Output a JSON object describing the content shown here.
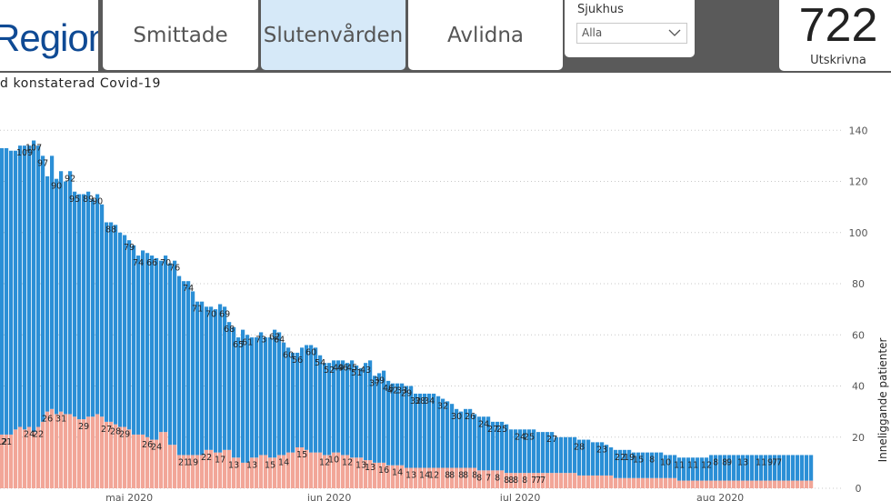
{
  "header": {
    "brand": "Region Gotland",
    "tabs": [
      {
        "label": "Smittade",
        "active": false
      },
      {
        "label": "Slutenvården",
        "active": true
      },
      {
        "label": "Avlidna",
        "active": false
      }
    ],
    "filter": {
      "label": "Sjukhus",
      "value": "Alla"
    },
    "kpi": {
      "value": "722",
      "label": "Utskrivna"
    }
  },
  "subtitle": "d konstaterad Covid-19",
  "colors": {
    "upper": "#2b8fd6",
    "lower": "#f2a698",
    "active_tab": "#d6e9f8"
  },
  "chart_data": {
    "type": "bar",
    "stacked": true,
    "ylabel": "Inneliggande patienter",
    "ylim": [
      0,
      140
    ],
    "yticks": [
      0,
      20,
      40,
      60,
      80,
      100,
      120,
      140
    ],
    "grid": true,
    "month_ticks": [
      {
        "label": "maj 2020",
        "index": 29
      },
      {
        "label": "jun 2020",
        "index": 73
      },
      {
        "label": "jul 2020",
        "index": 115
      },
      {
        "label": "aug 2020",
        "index": 159
      }
    ],
    "series": [
      {
        "values": [
          22,
          21,
          21,
          21,
          23,
          24,
          23,
          24,
          22,
          24,
          26,
          30,
          31,
          29,
          30,
          29,
          29,
          28,
          27,
          27,
          28,
          28,
          29,
          28,
          26,
          26,
          25,
          24,
          24,
          23,
          21,
          21,
          21,
          20,
          19,
          19,
          22,
          22,
          17,
          17,
          13,
          13,
          13,
          13,
          13,
          13,
          15,
          15,
          14,
          14,
          15,
          15,
          12,
          12,
          10,
          10,
          12,
          12,
          13,
          13,
          12,
          12,
          13,
          13,
          14,
          14,
          16,
          16,
          15,
          14,
          14,
          14,
          13,
          13,
          14,
          14,
          13,
          13,
          12,
          12,
          12,
          11,
          11,
          10,
          10,
          10,
          9,
          9,
          9,
          9,
          8,
          8,
          8,
          8,
          8,
          8,
          8,
          8,
          8,
          8,
          8,
          8,
          8,
          8,
          8,
          8,
          7,
          7,
          7,
          7,
          7,
          7,
          6,
          6,
          6,
          6,
          6,
          6,
          6,
          6,
          6,
          6,
          6,
          6,
          6,
          6,
          6,
          6,
          5,
          5,
          5,
          5,
          5,
          5,
          5,
          5,
          4,
          4,
          4,
          4,
          4,
          4,
          4,
          4,
          4,
          4,
          4,
          4,
          4,
          4,
          3,
          3,
          3,
          3,
          3,
          3,
          3,
          3,
          3,
          3,
          3,
          3,
          3,
          3,
          3,
          3,
          3,
          3,
          3,
          3,
          3,
          3,
          3,
          3,
          3,
          3,
          3,
          3,
          3,
          3
        ]
      },
      {
        "values": [
          112,
          112,
          112,
          111,
          109,
          110,
          111,
          110,
          114,
          110,
          104,
          92,
          99,
          92,
          94,
          91,
          95,
          88,
          88,
          88,
          88,
          85,
          86,
          83,
          78,
          78,
          78,
          76,
          75,
          74,
          74,
          70,
          72,
          72,
          72,
          71,
          67,
          69,
          71,
          72,
          70,
          68,
          68,
          64,
          60,
          60,
          56,
          56,
          56,
          58,
          56,
          50,
          51,
          47,
          52,
          50,
          47,
          47,
          48,
          46,
          47,
          50,
          48,
          44,
          41,
          39,
          37,
          39,
          41,
          42,
          41,
          38,
          36,
          36,
          36,
          36,
          37,
          36,
          38,
          36,
          35,
          38,
          39,
          34,
          35,
          36,
          33,
          32,
          32,
          32,
          32,
          32,
          29,
          29,
          29,
          29,
          29,
          28,
          27,
          26,
          25,
          23,
          22,
          23,
          23,
          21,
          21,
          21,
          21,
          19,
          19,
          19,
          19,
          17,
          17,
          17,
          17,
          17,
          17,
          16,
          16,
          16,
          16,
          14,
          14,
          14,
          14,
          14,
          14,
          14,
          14,
          13,
          13,
          13,
          12,
          11,
          11,
          11,
          11,
          11,
          10,
          10,
          10,
          10,
          10,
          10,
          10,
          9,
          9,
          9,
          9,
          9,
          9,
          9,
          9,
          9,
          9,
          10,
          10,
          10,
          10,
          10,
          10,
          10,
          10,
          10,
          10,
          10,
          10,
          10,
          10,
          10,
          10,
          10,
          10,
          10,
          10,
          10,
          10,
          10
        ]
      }
    ],
    "data_labels": [
      {
        "index": 1,
        "value": "12"
      },
      {
        "index": 2,
        "value": "21"
      },
      {
        "index": 6,
        "value": "109"
      },
      {
        "index": 7,
        "value": "24"
      },
      {
        "index": 8,
        "value": "107"
      },
      {
        "index": 9,
        "value": "22"
      },
      {
        "index": 10,
        "value": "97"
      },
      {
        "index": 11,
        "value": "26"
      },
      {
        "index": 13,
        "value": "90"
      },
      {
        "index": 14,
        "value": "31"
      },
      {
        "index": 16,
        "value": "92"
      },
      {
        "index": 17,
        "value": "95"
      },
      {
        "index": 19,
        "value": "29"
      },
      {
        "index": 20,
        "value": "89"
      },
      {
        "index": 22,
        "value": "90"
      },
      {
        "index": 24,
        "value": "27"
      },
      {
        "index": 25,
        "value": "88"
      },
      {
        "index": 26,
        "value": "28"
      },
      {
        "index": 28,
        "value": "29"
      },
      {
        "index": 29,
        "value": "79"
      },
      {
        "index": 31,
        "value": "74"
      },
      {
        "index": 33,
        "value": "26"
      },
      {
        "index": 34,
        "value": "66"
      },
      {
        "index": 35,
        "value": "24"
      },
      {
        "index": 37,
        "value": "70"
      },
      {
        "index": 39,
        "value": "76"
      },
      {
        "index": 41,
        "value": "21"
      },
      {
        "index": 42,
        "value": "74"
      },
      {
        "index": 43,
        "value": "19"
      },
      {
        "index": 44,
        "value": "71"
      },
      {
        "index": 46,
        "value": "22"
      },
      {
        "index": 47,
        "value": "70"
      },
      {
        "index": 49,
        "value": "17"
      },
      {
        "index": 50,
        "value": "69"
      },
      {
        "index": 51,
        "value": "68"
      },
      {
        "index": 52,
        "value": "13"
      },
      {
        "index": 53,
        "value": "65"
      },
      {
        "index": 55,
        "value": "61"
      },
      {
        "index": 56,
        "value": "13"
      },
      {
        "index": 58,
        "value": "73"
      },
      {
        "index": 60,
        "value": "15"
      },
      {
        "index": 61,
        "value": "62"
      },
      {
        "index": 62,
        "value": "64"
      },
      {
        "index": 63,
        "value": "14"
      },
      {
        "index": 64,
        "value": "60"
      },
      {
        "index": 66,
        "value": "56"
      },
      {
        "index": 67,
        "value": "15"
      },
      {
        "index": 69,
        "value": "60"
      },
      {
        "index": 71,
        "value": "54"
      },
      {
        "index": 72,
        "value": "12"
      },
      {
        "index": 73,
        "value": "52"
      },
      {
        "index": 74,
        "value": "10"
      },
      {
        "index": 75,
        "value": "49"
      },
      {
        "index": 76,
        "value": "46"
      },
      {
        "index": 77,
        "value": "12"
      },
      {
        "index": 78,
        "value": "45"
      },
      {
        "index": 79,
        "value": "51"
      },
      {
        "index": 80,
        "value": "13"
      },
      {
        "index": 81,
        "value": "43"
      },
      {
        "index": 82,
        "value": "13"
      },
      {
        "index": 83,
        "value": "37"
      },
      {
        "index": 84,
        "value": "39"
      },
      {
        "index": 85,
        "value": "16"
      },
      {
        "index": 86,
        "value": "46"
      },
      {
        "index": 87,
        "value": "42"
      },
      {
        "index": 88,
        "value": "14"
      },
      {
        "index": 89,
        "value": "33"
      },
      {
        "index": 90,
        "value": "29"
      },
      {
        "index": 91,
        "value": "13"
      },
      {
        "index": 92,
        "value": "32"
      },
      {
        "index": 93,
        "value": "38"
      },
      {
        "index": 94,
        "value": "14"
      },
      {
        "index": 95,
        "value": "34"
      },
      {
        "index": 96,
        "value": "12"
      },
      {
        "index": 98,
        "value": "32"
      },
      {
        "index": 99,
        "value": "8"
      },
      {
        "index": 100,
        "value": "8"
      },
      {
        "index": 101,
        "value": "30"
      },
      {
        "index": 102,
        "value": "8"
      },
      {
        "index": 103,
        "value": "8"
      },
      {
        "index": 104,
        "value": "26"
      },
      {
        "index": 105,
        "value": "8"
      },
      {
        "index": 106,
        "value": "8"
      },
      {
        "index": 107,
        "value": "24"
      },
      {
        "index": 108,
        "value": "7"
      },
      {
        "index": 109,
        "value": "27"
      },
      {
        "index": 110,
        "value": "8"
      },
      {
        "index": 111,
        "value": "25"
      },
      {
        "index": 112,
        "value": "8"
      },
      {
        "index": 113,
        "value": "8"
      },
      {
        "index": 114,
        "value": "8"
      },
      {
        "index": 115,
        "value": "24"
      },
      {
        "index": 116,
        "value": "8"
      },
      {
        "index": 117,
        "value": "25"
      },
      {
        "index": 118,
        "value": "7"
      },
      {
        "index": 119,
        "value": "7"
      },
      {
        "index": 120,
        "value": "7"
      },
      {
        "index": 122,
        "value": "27"
      },
      {
        "index": 128,
        "value": "28"
      },
      {
        "index": 133,
        "value": "23"
      },
      {
        "index": 137,
        "value": "22"
      },
      {
        "index": 139,
        "value": "19"
      },
      {
        "index": 141,
        "value": "15"
      },
      {
        "index": 144,
        "value": "8"
      },
      {
        "index": 147,
        "value": "10"
      },
      {
        "index": 150,
        "value": "11"
      },
      {
        "index": 153,
        "value": "11"
      },
      {
        "index": 156,
        "value": "12"
      },
      {
        "index": 158,
        "value": "8"
      },
      {
        "index": 160,
        "value": "8"
      },
      {
        "index": 161,
        "value": "9"
      },
      {
        "index": 164,
        "value": "13"
      },
      {
        "index": 168,
        "value": "11"
      },
      {
        "index": 170,
        "value": "9"
      },
      {
        "index": 171,
        "value": "7"
      },
      {
        "index": 172,
        "value": "7"
      }
    ]
  }
}
